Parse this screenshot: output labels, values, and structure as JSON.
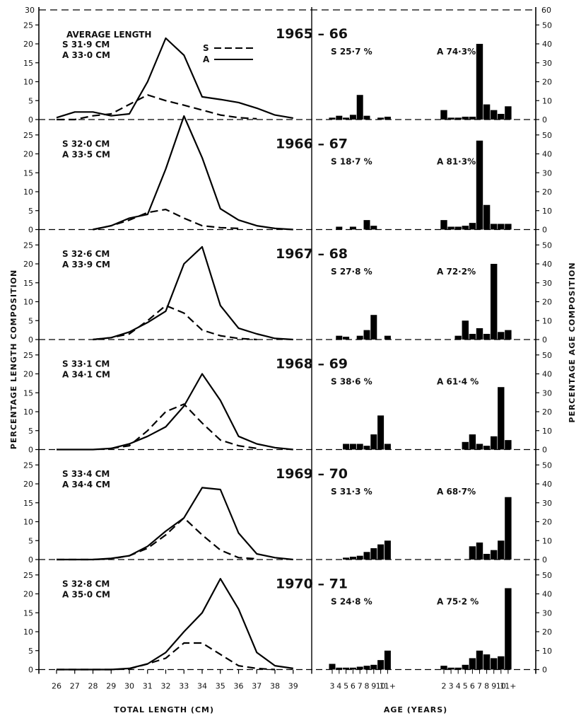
{
  "chart_data": {
    "type": "line+bar",
    "ylabel_left": "PERCENTAGE LENGTH COMPOSITION",
    "ylabel_right": "PERCENTAGE AGE COMPOSITION",
    "xlabel_length": "TOTAL LENGTH (CM)",
    "xlabel_age": "AGE (YEARS)",
    "length_ticks": [
      "26",
      "27",
      "28",
      "29",
      "30",
      "31",
      "32",
      "33",
      "34",
      "35",
      "36",
      "37",
      "38",
      "39"
    ],
    "age_ticks_S": [
      "3",
      "4",
      "5",
      "6",
      "7",
      "8",
      "9",
      "10",
      "11+"
    ],
    "age_ticks_A": [
      "2",
      "3",
      "4",
      "5",
      "6",
      "7",
      "8",
      "9",
      "10",
      "11+"
    ],
    "left_ylim": [
      0,
      25
    ],
    "left_yticks": [
      "0",
      "5",
      "10",
      "15",
      "20",
      "25"
    ],
    "left_top_tick": "30",
    "right_ylim": [
      0,
      50
    ],
    "right_yticks": [
      "0",
      "10",
      "20",
      "30",
      "40",
      "50"
    ],
    "right_top_tick": "60",
    "legend_title": "AVERAGE LENGTH",
    "legend_entries": [
      {
        "key": "S",
        "style": "dashed"
      },
      {
        "key": "A",
        "style": "solid"
      }
    ],
    "panels": [
      {
        "year": "1965 – 66",
        "avg_S": "S 31·9 CM",
        "avg_A": "A 33·0 CM",
        "pct_S": "S 25·7 %",
        "pct_A": "A 74·3%",
        "length_x": [
          26,
          27,
          28,
          29,
          30,
          31,
          32,
          33,
          34,
          35,
          36,
          37,
          38,
          39
        ],
        "A_length": [
          0.5,
          2,
          2,
          1,
          1.5,
          10,
          21.5,
          17,
          6,
          5.3,
          4.5,
          3,
          1.2,
          0.4
        ],
        "S_length": [
          0,
          0,
          1,
          1.5,
          4,
          6.5,
          5,
          3.8,
          2.5,
          1.2,
          0.5,
          0.2,
          null,
          null
        ],
        "S_age": [
          1,
          2,
          1,
          2.5,
          13,
          2,
          0,
          1,
          1.5
        ],
        "A_age": [
          5,
          1,
          1,
          1.5,
          1.5,
          40,
          8,
          5,
          3,
          7
        ]
      },
      {
        "year": "1966 – 67",
        "avg_S": "S 32·0 CM",
        "avg_A": "A 33·5 CM",
        "pct_S": "S  18·7 %",
        "pct_A": "A 81·3%",
        "length_x": [
          26,
          27,
          28,
          29,
          30,
          31,
          32,
          33,
          34,
          35,
          36,
          37,
          38,
          39
        ],
        "A_length": [
          null,
          null,
          0,
          1,
          3,
          4,
          16,
          30,
          19,
          5.5,
          2.5,
          1,
          0.3,
          0
        ],
        "S_length": [
          null,
          null,
          0,
          1,
          2.5,
          4.5,
          5.3,
          3,
          1,
          0.5,
          0.3,
          null,
          null,
          null
        ],
        "S_age": [
          0,
          1.5,
          0,
          1.5,
          0,
          5,
          2,
          0,
          0
        ],
        "A_age": [
          5,
          1.5,
          1.5,
          2,
          3.5,
          47,
          13,
          3,
          3,
          3
        ]
      },
      {
        "year": "1967 – 68",
        "avg_S": "S 32·6 CM",
        "avg_A": "A 33·9 CM",
        "pct_S": "S  27·8 %",
        "pct_A": "A 72·2%",
        "length_x": [
          26,
          27,
          28,
          29,
          30,
          31,
          32,
          33,
          34,
          35,
          36,
          37,
          38,
          39
        ],
        "A_length": [
          null,
          null,
          0,
          0.5,
          2,
          4.5,
          7.5,
          20,
          24.5,
          9,
          3,
          1.5,
          0.3,
          0
        ],
        "S_length": [
          null,
          null,
          0,
          0.5,
          1.5,
          5,
          9,
          7,
          2.5,
          1,
          0.3,
          0,
          null,
          null
        ],
        "S_age": [
          0,
          2,
          1.5,
          0,
          2,
          5,
          13,
          0,
          2
        ],
        "A_age": [
          0,
          0,
          2,
          10,
          3,
          6,
          3,
          40,
          4,
          5
        ]
      },
      {
        "year": "1968 – 69",
        "avg_S": "S 33·1 CM",
        "avg_A": "A 34·1 CM",
        "pct_S": "S  38·6 %",
        "pct_A": "A  61·4 %",
        "length_x": [
          26,
          27,
          28,
          29,
          30,
          31,
          32,
          33,
          34,
          35,
          36,
          37,
          38,
          39
        ],
        "A_length": [
          0,
          0,
          0,
          0.3,
          1.5,
          3.5,
          6,
          11.5,
          20,
          13,
          3.5,
          1.5,
          0.5,
          0
        ],
        "S_length": [
          null,
          null,
          null,
          0.3,
          1,
          5,
          10,
          12,
          7,
          2.5,
          1,
          0.3,
          null,
          null
        ],
        "S_age": [
          0,
          0,
          3,
          3,
          3,
          2,
          8,
          18,
          3
        ],
        "A_age": [
          0,
          0,
          0,
          4,
          8,
          3,
          2,
          7,
          33,
          5
        ]
      },
      {
        "year": "1969 – 70",
        "avg_S": "S 33·4 CM",
        "avg_A": "A 34·4 CM",
        "pct_S": "S  31·3 %",
        "pct_A": "A  68·7%",
        "length_x": [
          26,
          27,
          28,
          29,
          30,
          31,
          32,
          33,
          34,
          35,
          36,
          37,
          38,
          39
        ],
        "A_length": [
          0,
          0,
          0,
          0.3,
          1,
          3.5,
          7.5,
          11,
          19,
          18.5,
          7,
          1.5,
          0.5,
          0
        ],
        "S_length": [
          0,
          0,
          0,
          0.2,
          1,
          3,
          6.5,
          11,
          6.5,
          2.5,
          0.5,
          0.2,
          null,
          null
        ],
        "S_age": [
          0,
          0,
          1,
          1.5,
          2,
          4,
          6,
          8,
          10
        ],
        "A_age": [
          0,
          0,
          0,
          0,
          7,
          9,
          3,
          5,
          10,
          33
        ]
      },
      {
        "year": "1970 – 71",
        "avg_S": "S 32·8 CM",
        "avg_A": "A 35·0 CM",
        "pct_S": "S  24·8 %",
        "pct_A": "A  75·2 %",
        "length_x": [
          26,
          27,
          28,
          29,
          30,
          31,
          32,
          33,
          34,
          35,
          36,
          37,
          38,
          39
        ],
        "A_length": [
          0,
          0,
          0,
          0,
          0.3,
          1.5,
          4.5,
          10,
          15,
          24,
          16,
          4.5,
          1,
          0.3
        ],
        "S_length": [
          0,
          0,
          0,
          0,
          0.2,
          1.5,
          3,
          7,
          7,
          4,
          1,
          0.3,
          0,
          null
        ],
        "S_age": [
          3,
          1,
          1,
          1,
          1.5,
          2,
          2.5,
          5,
          10
        ],
        "A_age": [
          2,
          1,
          1,
          2.5,
          6,
          10,
          8,
          6,
          7,
          43
        ]
      }
    ]
  }
}
